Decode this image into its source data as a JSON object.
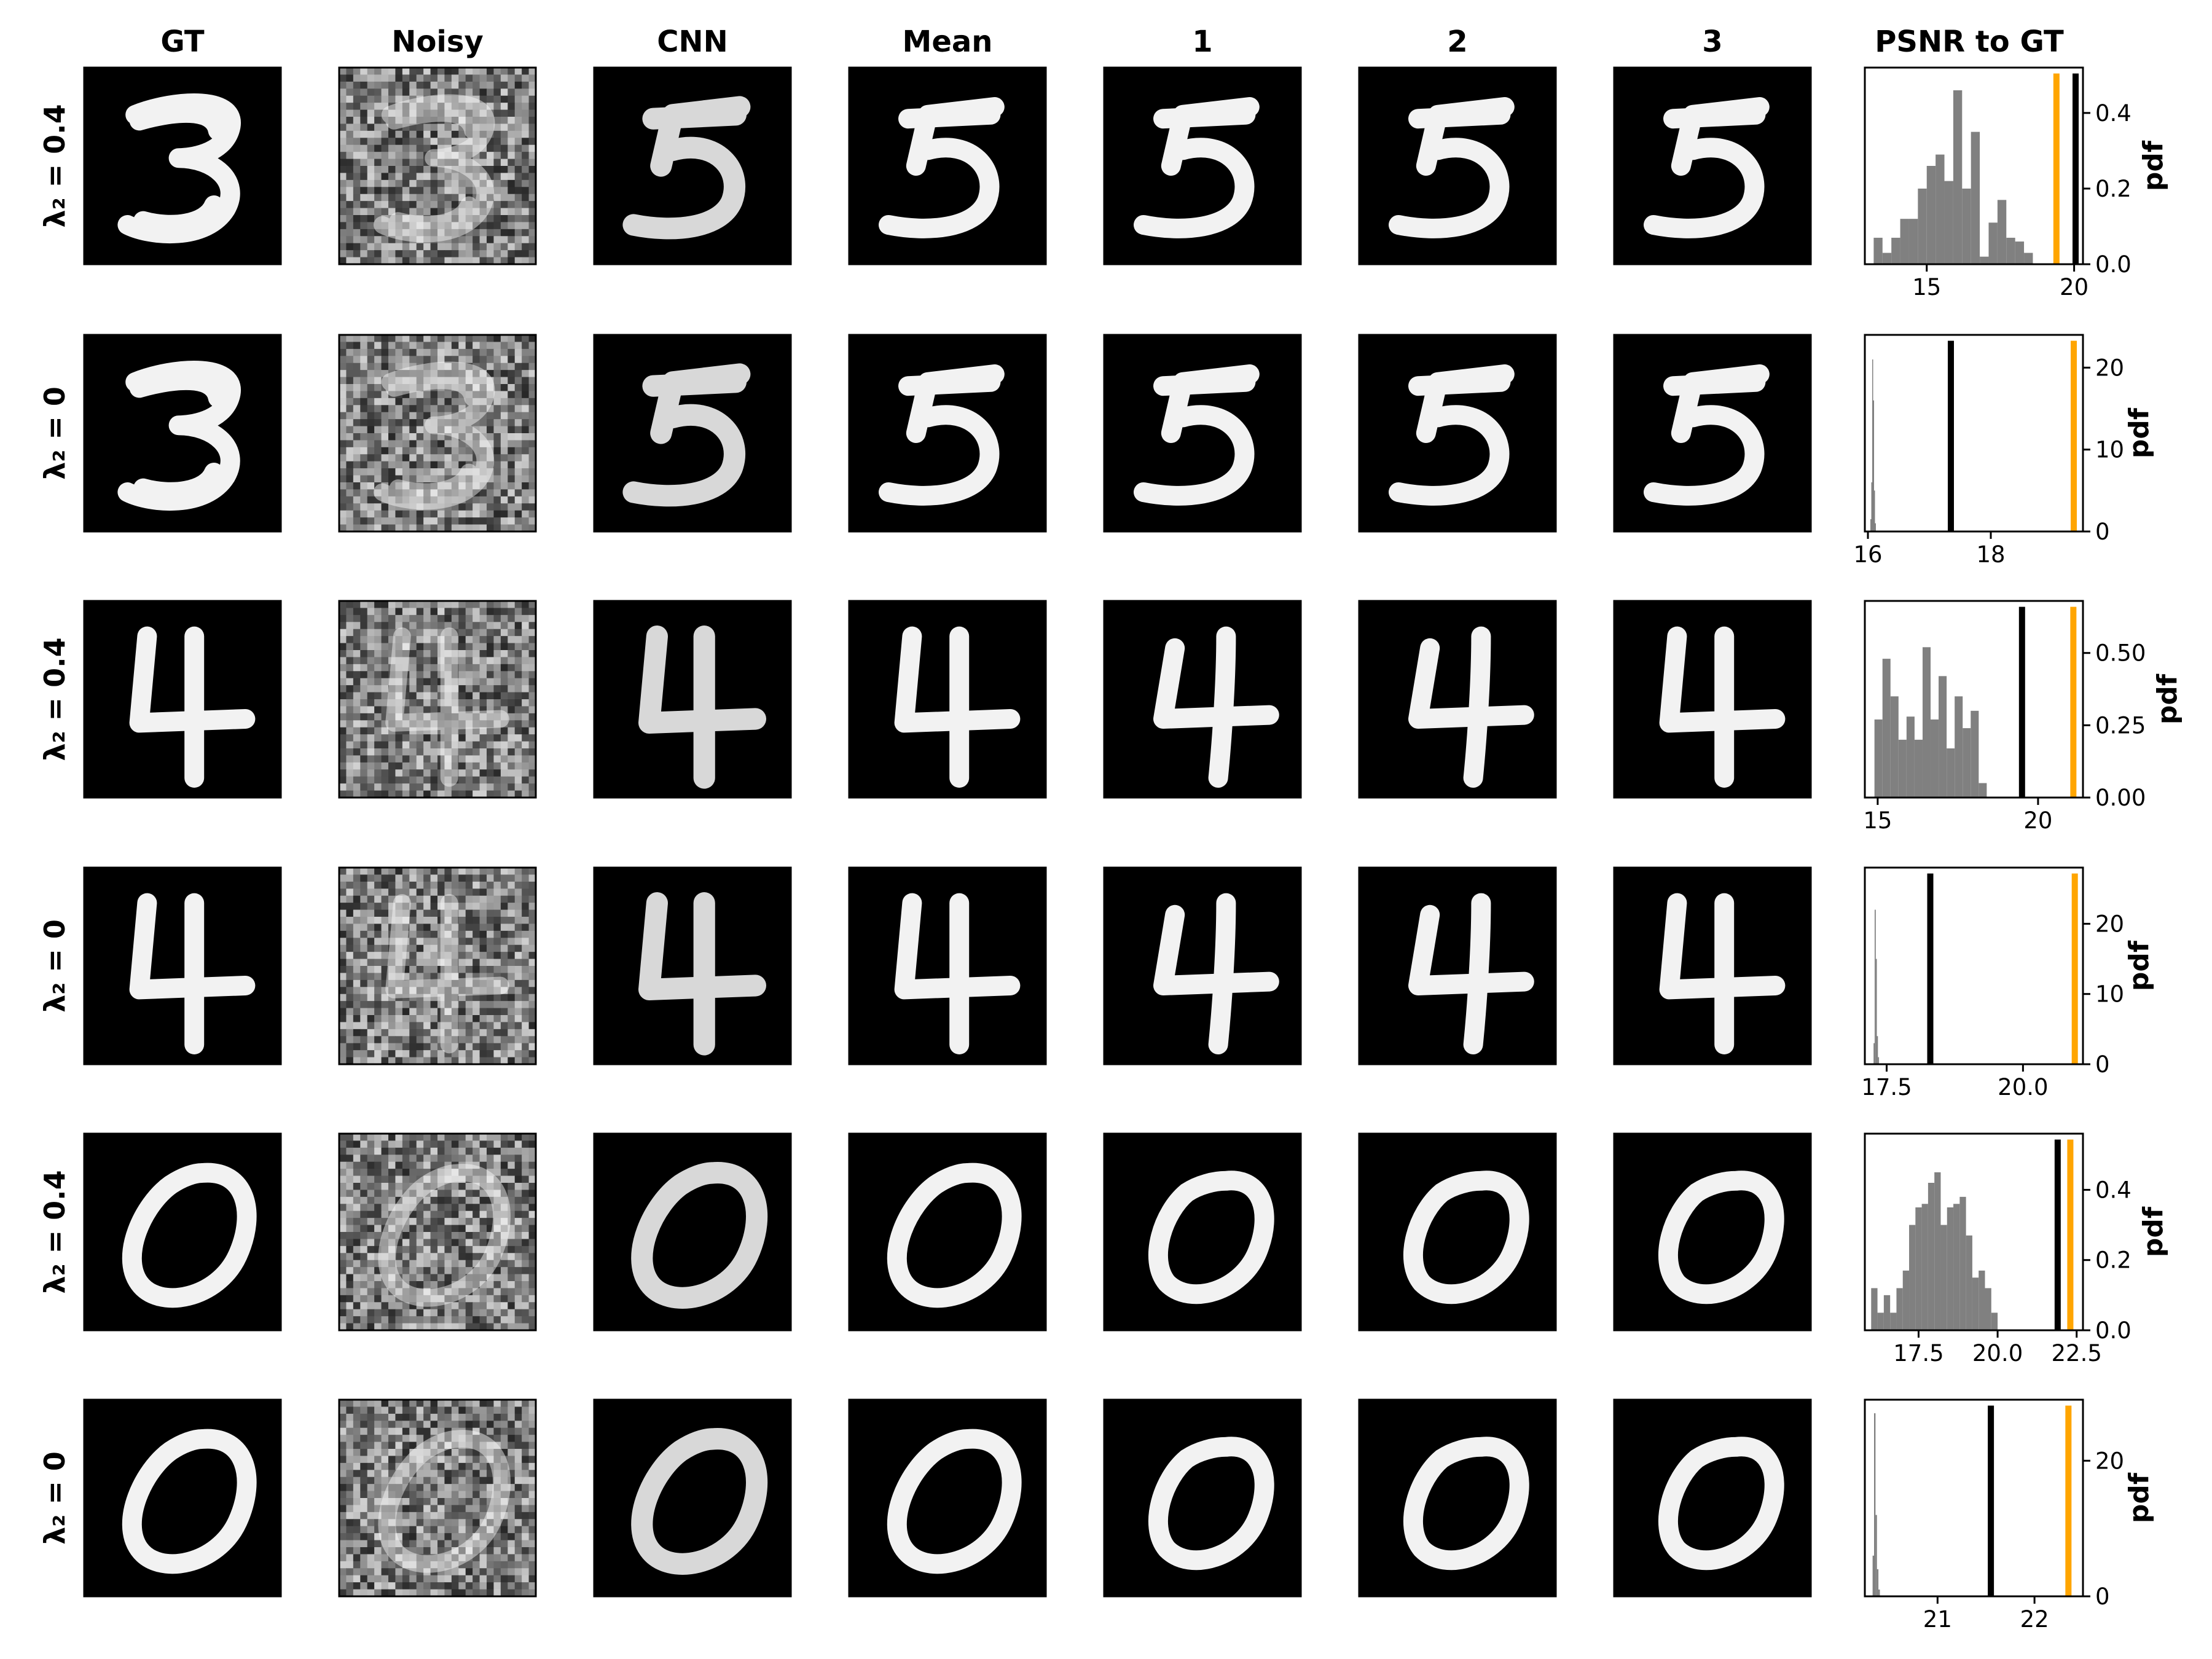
{
  "column_titles": [
    "GT",
    "Noisy",
    "CNN",
    "Mean",
    "1",
    "2",
    "3",
    "PSNR to GT"
  ],
  "histogram_ylabel": "pdf",
  "rows": [
    {
      "label": "λ₂ = 0.4",
      "digit": "3"
    },
    {
      "label": "λ₂ = 0",
      "digit": "3"
    },
    {
      "label": "λ₂ = 0.4",
      "digit": "4"
    },
    {
      "label": "λ₂ = 0",
      "digit": "4"
    },
    {
      "label": "λ₂ = 0.4",
      "digit": "0"
    },
    {
      "label": "λ₂ = 0",
      "digit": "0"
    }
  ],
  "colors": {
    "hist": "#808080",
    "orange_line": "#FFA500",
    "black_line": "#000000",
    "image_bg": "#000000",
    "digit": "#f2f2f2"
  },
  "chart_data": [
    {
      "type": "bar",
      "xlim": [
        12.9,
        20.3
      ],
      "xticks": [
        15,
        20
      ],
      "xtick_labels": [
        "15",
        "20"
      ],
      "ylim": [
        0,
        0.52
      ],
      "yticks": [
        0,
        0.2,
        0.4
      ],
      "ytick_labels": [
        "0.0",
        "0.2",
        "0.4"
      ],
      "bin_edges": [
        13.2,
        13.5,
        13.8,
        14.1,
        14.4,
        14.7,
        15.0,
        15.3,
        15.6,
        15.9,
        16.2,
        16.5,
        16.8,
        17.1,
        17.4,
        17.7,
        18.0,
        18.3,
        18.6
      ],
      "densities": [
        0.07,
        0.03,
        0.07,
        0.12,
        0.12,
        0.2,
        0.26,
        0.29,
        0.22,
        0.46,
        0.2,
        0.35,
        0.02,
        0.11,
        0.17,
        0.07,
        0.06,
        0.03
      ],
      "orange_line": 19.4,
      "black_line": 20.05
    },
    {
      "type": "bar",
      "xlim": [
        15.95,
        19.5
      ],
      "xticks": [
        16,
        18
      ],
      "xtick_labels": [
        "16",
        "18"
      ],
      "ylim": [
        0,
        24
      ],
      "yticks": [
        0,
        10,
        20
      ],
      "ytick_labels": [
        "0",
        "10",
        "20"
      ],
      "bin_edges": [
        16.04,
        16.055,
        16.07,
        16.085,
        16.1,
        16.115,
        16.13
      ],
      "densities": [
        1.5,
        6.0,
        21.0,
        16.0,
        5.0,
        1.0
      ],
      "orange_line": 19.35,
      "black_line": 17.35
    },
    {
      "type": "bar",
      "xlim": [
        14.6,
        21.4
      ],
      "xticks": [
        15,
        20
      ],
      "xtick_labels": [
        "15",
        "20"
      ],
      "ylim": [
        0,
        0.68
      ],
      "yticks": [
        0,
        0.25,
        0.5
      ],
      "ytick_labels": [
        "0.00",
        "0.25",
        "0.50"
      ],
      "bin_edges": [
        14.9,
        15.15,
        15.4,
        15.65,
        15.9,
        16.15,
        16.4,
        16.65,
        16.9,
        17.15,
        17.4,
        17.65,
        17.9,
        18.15,
        18.4
      ],
      "densities": [
        0.27,
        0.48,
        0.35,
        0.2,
        0.28,
        0.2,
        0.52,
        0.27,
        0.42,
        0.17,
        0.35,
        0.24,
        0.3,
        0.05
      ],
      "orange_line": 21.1,
      "black_line": 19.5
    },
    {
      "type": "bar",
      "xlim": [
        17.1,
        21.1
      ],
      "xticks": [
        17.5,
        20.0
      ],
      "xtick_labels": [
        "17.5",
        "20.0"
      ],
      "ylim": [
        0,
        28
      ],
      "yticks": [
        0,
        10,
        20
      ],
      "ytick_labels": [
        "0",
        "10",
        "20"
      ],
      "bin_edges": [
        17.26,
        17.28,
        17.3,
        17.32,
        17.34,
        17.36
      ],
      "densities": [
        3.0,
        22.0,
        15.0,
        4.0,
        1.0
      ],
      "orange_line": 20.95,
      "black_line": 18.3
    },
    {
      "type": "bar",
      "xlim": [
        15.8,
        22.7
      ],
      "xticks": [
        17.5,
        20.0,
        22.5
      ],
      "xtick_labels": [
        "17.5",
        "20.0",
        "22.5"
      ],
      "ylim": [
        0,
        0.56
      ],
      "yticks": [
        0,
        0.2,
        0.4
      ],
      "ytick_labels": [
        "0.0",
        "0.2",
        "0.4"
      ],
      "bin_edges": [
        16.0,
        16.2,
        16.4,
        16.6,
        16.8,
        17.0,
        17.2,
        17.4,
        17.6,
        17.8,
        18.0,
        18.2,
        18.4,
        18.6,
        18.8,
        19.0,
        19.2,
        19.4,
        19.6,
        19.8,
        20.0
      ],
      "densities": [
        0.12,
        0.05,
        0.1,
        0.05,
        0.12,
        0.17,
        0.3,
        0.35,
        0.36,
        0.42,
        0.45,
        0.3,
        0.35,
        0.36,
        0.38,
        0.27,
        0.15,
        0.17,
        0.12,
        0.05
      ],
      "orange_line": 22.3,
      "black_line": 21.9
    },
    {
      "type": "bar",
      "xlim": [
        20.25,
        22.5
      ],
      "xticks": [
        21,
        22
      ],
      "xtick_labels": [
        "21",
        "22"
      ],
      "ylim": [
        0,
        29
      ],
      "yticks": [
        0,
        20
      ],
      "ytick_labels": [
        "0",
        "20"
      ],
      "bin_edges": [
        20.33,
        20.345,
        20.36,
        20.375,
        20.39,
        20.405
      ],
      "densities": [
        6.0,
        27.0,
        12.0,
        4.0,
        1.0
      ],
      "orange_line": 22.35,
      "black_line": 21.55
    }
  ]
}
